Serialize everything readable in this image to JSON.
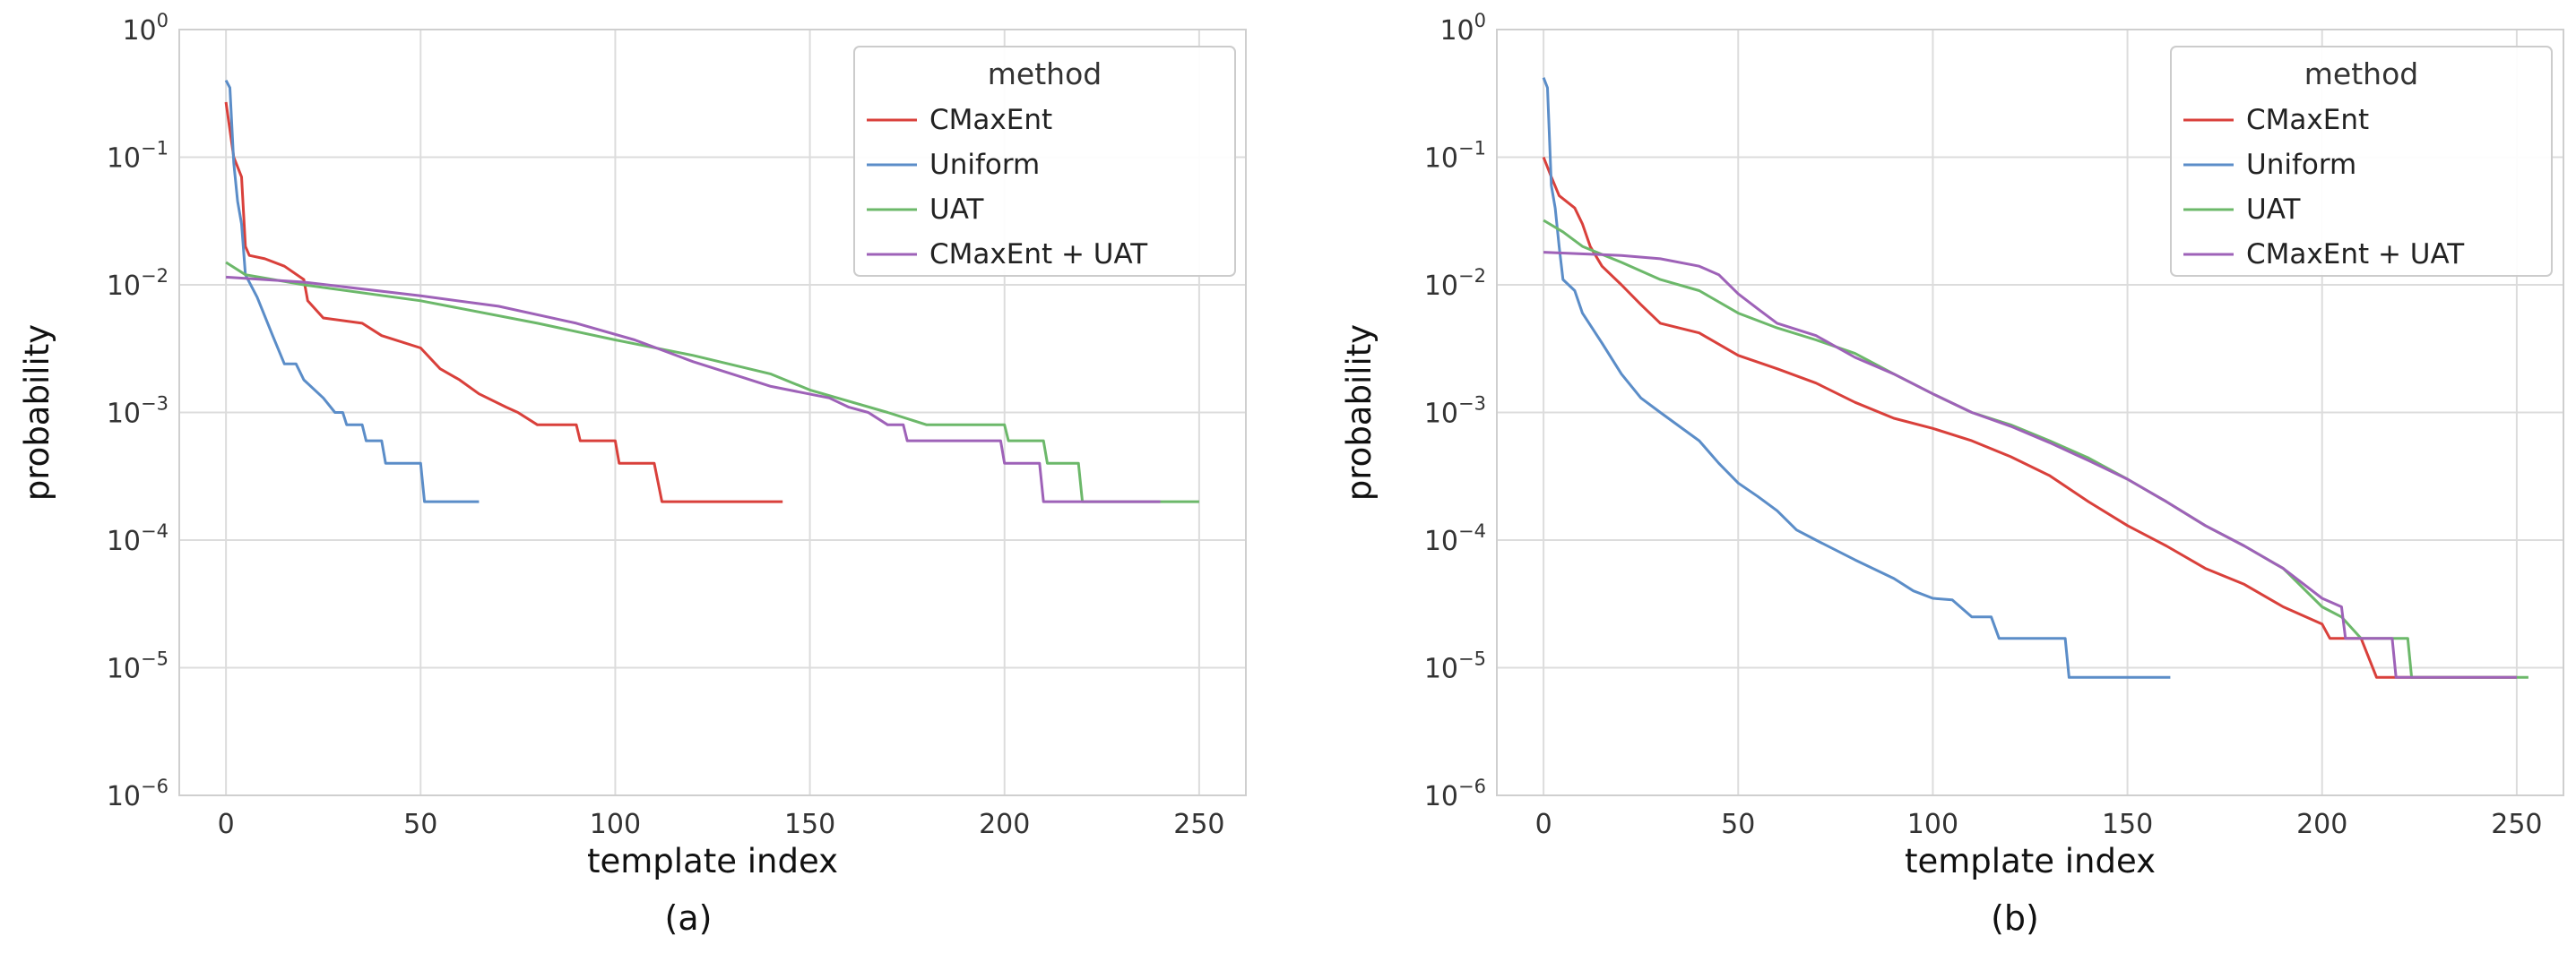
{
  "chart_data": [
    {
      "type": "line",
      "caption": "(a)",
      "xlabel": "template index",
      "ylabel": "probability",
      "yscale": "log",
      "xlim": [
        -12,
        262
      ],
      "ylim_exp": [
        -6,
        0
      ],
      "xticks": [
        "0",
        "50",
        "100",
        "150",
        "200",
        "250"
      ],
      "ytick_base": "10",
      "yticks": [
        "0",
        "−1",
        "−2",
        "−3",
        "−4",
        "−5",
        "−6"
      ],
      "grid": true,
      "legend": {
        "title": "method",
        "position": "upper right",
        "entries": [
          "CMaxEnt",
          "Uniform",
          "UAT",
          "CMaxEnt + UAT"
        ]
      },
      "series": [
        {
          "name": "CMaxEnt",
          "color": "#d9403b",
          "points": [
            [
              0,
              0.27
            ],
            [
              2,
              0.1
            ],
            [
              4,
              0.07
            ],
            [
              5,
              0.02
            ],
            [
              6,
              0.017
            ],
            [
              10,
              0.016
            ],
            [
              15,
              0.014
            ],
            [
              20,
              0.011
            ],
            [
              21,
              0.0075
            ],
            [
              25,
              0.0055
            ],
            [
              35,
              0.005
            ],
            [
              40,
              0.004
            ],
            [
              50,
              0.0032
            ],
            [
              55,
              0.0022
            ],
            [
              60,
              0.0018
            ],
            [
              65,
              0.0014
            ],
            [
              72,
              0.0011
            ],
            [
              75,
              0.001
            ],
            [
              80,
              0.0008
            ],
            [
              90,
              0.0008
            ],
            [
              91,
              0.0006
            ],
            [
              100,
              0.0006
            ],
            [
              101,
              0.0004
            ],
            [
              110,
              0.0004
            ],
            [
              112,
              0.0002
            ],
            [
              143,
              0.0002
            ]
          ]
        },
        {
          "name": "Uniform",
          "color": "#5b8dc8",
          "points": [
            [
              0,
              0.4
            ],
            [
              1,
              0.35
            ],
            [
              2,
              0.09
            ],
            [
              3,
              0.045
            ],
            [
              4,
              0.03
            ],
            [
              5,
              0.012
            ],
            [
              8,
              0.008
            ],
            [
              12,
              0.004
            ],
            [
              15,
              0.0024
            ],
            [
              18,
              0.0024
            ],
            [
              20,
              0.0018
            ],
            [
              25,
              0.0013
            ],
            [
              28,
              0.001
            ],
            [
              30,
              0.001
            ],
            [
              31,
              0.0008
            ],
            [
              35,
              0.0008
            ],
            [
              36,
              0.0006
            ],
            [
              40,
              0.0006
            ],
            [
              41,
              0.0004
            ],
            [
              50,
              0.0004
            ],
            [
              51,
              0.0002
            ],
            [
              65,
              0.0002
            ]
          ]
        },
        {
          "name": "UAT",
          "color": "#6cb86a",
          "points": [
            [
              0,
              0.015
            ],
            [
              5,
              0.012
            ],
            [
              20,
              0.01
            ],
            [
              50,
              0.0075
            ],
            [
              80,
              0.005
            ],
            [
              100,
              0.0037
            ],
            [
              120,
              0.0028
            ],
            [
              140,
              0.002
            ],
            [
              150,
              0.0015
            ],
            [
              170,
              0.001
            ],
            [
              180,
              0.0008
            ],
            [
              200,
              0.0008
            ],
            [
              201,
              0.0006
            ],
            [
              210,
              0.0006
            ],
            [
              211,
              0.0004
            ],
            [
              219,
              0.0004
            ],
            [
              220,
              0.0002
            ],
            [
              250,
              0.0002
            ]
          ]
        },
        {
          "name": "CMaxEnt + UAT",
          "color": "#9e62b8",
          "points": [
            [
              0,
              0.0115
            ],
            [
              20,
              0.0105
            ],
            [
              50,
              0.0082
            ],
            [
              70,
              0.0068
            ],
            [
              90,
              0.005
            ],
            [
              105,
              0.0037
            ],
            [
              120,
              0.0025
            ],
            [
              130,
              0.002
            ],
            [
              140,
              0.0016
            ],
            [
              155,
              0.0013
            ],
            [
              160,
              0.0011
            ],
            [
              165,
              0.001
            ],
            [
              170,
              0.0008
            ],
            [
              174,
              0.0008
            ],
            [
              175,
              0.0006
            ],
            [
              199,
              0.0006
            ],
            [
              200,
              0.0004
            ],
            [
              209,
              0.0004
            ],
            [
              210,
              0.0002
            ],
            [
              240,
              0.0002
            ]
          ]
        }
      ]
    },
    {
      "type": "line",
      "caption": "(b)",
      "xlabel": "template index",
      "ylabel": "probability",
      "yscale": "log",
      "xlim": [
        -12,
        262
      ],
      "ylim_exp": [
        -6,
        0
      ],
      "xticks": [
        "0",
        "50",
        "100",
        "150",
        "200",
        "250"
      ],
      "ytick_base": "10",
      "yticks": [
        "0",
        "−1",
        "−2",
        "−3",
        "−4",
        "−5",
        "−6"
      ],
      "grid": true,
      "legend": {
        "title": "method",
        "position": "upper right",
        "entries": [
          "CMaxEnt",
          "Uniform",
          "UAT",
          "CMaxEnt + UAT"
        ]
      },
      "series": [
        {
          "name": "CMaxEnt",
          "color": "#d9403b",
          "points": [
            [
              0,
              0.1
            ],
            [
              2,
              0.07
            ],
            [
              4,
              0.05
            ],
            [
              8,
              0.04
            ],
            [
              10,
              0.03
            ],
            [
              12,
              0.02
            ],
            [
              15,
              0.014
            ],
            [
              20,
              0.01
            ],
            [
              25,
              0.007
            ],
            [
              30,
              0.005
            ],
            [
              40,
              0.0042
            ],
            [
              50,
              0.0028
            ],
            [
              60,
              0.0022
            ],
            [
              70,
              0.0017
            ],
            [
              80,
              0.0012
            ],
            [
              90,
              0.0009
            ],
            [
              100,
              0.00075
            ],
            [
              110,
              0.0006
            ],
            [
              120,
              0.00045
            ],
            [
              130,
              0.00032
            ],
            [
              140,
              0.0002
            ],
            [
              150,
              0.00013
            ],
            [
              160,
              9e-05
            ],
            [
              170,
              6e-05
            ],
            [
              180,
              4.5e-05
            ],
            [
              190,
              3e-05
            ],
            [
              200,
              2.2e-05
            ],
            [
              202,
              1.7e-05
            ],
            [
              210,
              1.7e-05
            ],
            [
              214,
              8.4e-06
            ],
            [
              250,
              8.4e-06
            ]
          ]
        },
        {
          "name": "Uniform",
          "color": "#5b8dc8",
          "points": [
            [
              0,
              0.42
            ],
            [
              1,
              0.35
            ],
            [
              2,
              0.06
            ],
            [
              3,
              0.04
            ],
            [
              4,
              0.02
            ],
            [
              5,
              0.011
            ],
            [
              8,
              0.009
            ],
            [
              10,
              0.006
            ],
            [
              15,
              0.0035
            ],
            [
              20,
              0.002
            ],
            [
              25,
              0.0013
            ],
            [
              30,
              0.001
            ],
            [
              40,
              0.0006
            ],
            [
              45,
              0.0004
            ],
            [
              50,
              0.00028
            ],
            [
              55,
              0.00022
            ],
            [
              60,
              0.00017
            ],
            [
              65,
              0.00012
            ],
            [
              70,
              0.0001
            ],
            [
              80,
              7e-05
            ],
            [
              90,
              5e-05
            ],
            [
              95,
              4e-05
            ],
            [
              100,
              3.5e-05
            ],
            [
              105,
              3.4e-05
            ],
            [
              110,
              2.5e-05
            ],
            [
              115,
              2.5e-05
            ],
            [
              117,
              1.7e-05
            ],
            [
              134,
              1.7e-05
            ],
            [
              135,
              8.4e-06
            ],
            [
              161,
              8.4e-06
            ]
          ]
        },
        {
          "name": "UAT",
          "color": "#6cb86a",
          "points": [
            [
              0,
              0.032
            ],
            [
              5,
              0.026
            ],
            [
              10,
              0.02
            ],
            [
              20,
              0.015
            ],
            [
              30,
              0.011
            ],
            [
              40,
              0.009
            ],
            [
              50,
              0.006
            ],
            [
              60,
              0.0046
            ],
            [
              70,
              0.0037
            ],
            [
              80,
              0.0029
            ],
            [
              90,
              0.002
            ],
            [
              100,
              0.0014
            ],
            [
              110,
              0.001
            ],
            [
              120,
              0.0008
            ],
            [
              130,
              0.0006
            ],
            [
              140,
              0.00044
            ],
            [
              150,
              0.0003
            ],
            [
              160,
              0.0002
            ],
            [
              170,
              0.00013
            ],
            [
              180,
              9e-05
            ],
            [
              190,
              6e-05
            ],
            [
              200,
              3e-05
            ],
            [
              205,
              2.5e-05
            ],
            [
              210,
              1.7e-05
            ],
            [
              222,
              1.7e-05
            ],
            [
              223,
              8.4e-06
            ],
            [
              253,
              8.4e-06
            ]
          ]
        },
        {
          "name": "CMaxEnt + UAT",
          "color": "#9e62b8",
          "points": [
            [
              0,
              0.018
            ],
            [
              20,
              0.017
            ],
            [
              30,
              0.016
            ],
            [
              40,
              0.014
            ],
            [
              45,
              0.012
            ],
            [
              50,
              0.0085
            ],
            [
              55,
              0.0065
            ],
            [
              60,
              0.005
            ],
            [
              70,
              0.004
            ],
            [
              80,
              0.0027
            ],
            [
              90,
              0.002
            ],
            [
              100,
              0.0014
            ],
            [
              110,
              0.001
            ],
            [
              120,
              0.00078
            ],
            [
              130,
              0.00058
            ],
            [
              140,
              0.00042
            ],
            [
              150,
              0.0003
            ],
            [
              160,
              0.0002
            ],
            [
              170,
              0.00013
            ],
            [
              180,
              9e-05
            ],
            [
              190,
              6e-05
            ],
            [
              200,
              3.5e-05
            ],
            [
              205,
              3e-05
            ],
            [
              206,
              1.7e-05
            ],
            [
              218,
              1.7e-05
            ],
            [
              219,
              8.4e-06
            ],
            [
              250,
              8.4e-06
            ]
          ]
        }
      ]
    }
  ]
}
